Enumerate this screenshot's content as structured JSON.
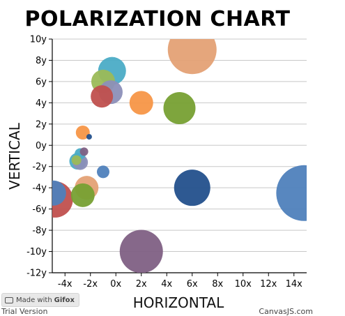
{
  "chart_data": {
    "type": "scatter",
    "variant": "bubble",
    "title": "POLARIZATION CHART",
    "xlabel": "HORIZONTAL",
    "ylabel": "VERTICAL",
    "xlim": [
      -5,
      15
    ],
    "ylim": [
      -12,
      10
    ],
    "x_ticks": [
      -4,
      -2,
      0,
      2,
      4,
      6,
      8,
      10,
      12,
      14
    ],
    "x_tick_labels": [
      "-4x",
      "-2x",
      "0x",
      "2x",
      "4x",
      "6x",
      "8x",
      "10x",
      "12x",
      "14x"
    ],
    "y_ticks": [
      -12,
      -10,
      -8,
      -6,
      -4,
      -2,
      0,
      2,
      4,
      6,
      8,
      10
    ],
    "y_tick_labels": [
      "-12y",
      "-10y",
      "-8y",
      "-6y",
      "-4y",
      "-2y",
      "0y",
      "2y",
      "4y",
      "6y",
      "8y",
      "10y"
    ],
    "grid": true,
    "points": [
      {
        "x": -4.9,
        "y": -4.5,
        "size": 18,
        "color": "#4f81bc"
      },
      {
        "x": -4.8,
        "y": -5.1,
        "size": 26,
        "color": "#c0504e"
      },
      {
        "x": 6.0,
        "y": 9.0,
        "size": 35,
        "color": "#e4a175"
      },
      {
        "x": 14.8,
        "y": -4.5,
        "size": 40,
        "color": "#4f81bc"
      },
      {
        "x": 2.0,
        "y": -10.0,
        "size": 31,
        "color": "#7f6084"
      },
      {
        "x": 6.0,
        "y": -4.0,
        "size": 26,
        "color": "#23508c"
      },
      {
        "x": 5.0,
        "y": 3.5,
        "size": 23,
        "color": "#77a033"
      },
      {
        "x": 2.0,
        "y": 4.0,
        "size": 17,
        "color": "#f79647"
      },
      {
        "x": -1.0,
        "y": 6.0,
        "size": 17,
        "color": "#9bbb58"
      },
      {
        "x": -1.1,
        "y": 4.6,
        "size": 16,
        "color": "#c0504e"
      },
      {
        "x": -0.3,
        "y": 7.0,
        "size": 20,
        "color": "#4bacc6"
      },
      {
        "x": -0.4,
        "y": 5.0,
        "size": 17,
        "color": "#8c8fb8"
      },
      {
        "x": -2.6,
        "y": 1.2,
        "size": 10,
        "color": "#f79647"
      },
      {
        "x": -2.1,
        "y": 0.8,
        "size": 4,
        "color": "#23508c"
      },
      {
        "x": -2.8,
        "y": -0.8,
        "size": 8,
        "color": "#4bacc6"
      },
      {
        "x": -2.5,
        "y": -0.6,
        "size": 6,
        "color": "#7f6084"
      },
      {
        "x": -3.0,
        "y": -1.5,
        "size": 12,
        "color": "#4bacc6"
      },
      {
        "x": -1.0,
        "y": -2.5,
        "size": 9,
        "color": "#4f81bc"
      },
      {
        "x": -2.3,
        "y": -4.0,
        "size": 17,
        "color": "#e4a175"
      },
      {
        "x": -2.6,
        "y": -4.7,
        "size": 17,
        "color": "#77a033"
      },
      {
        "x": -2.8,
        "y": -1.6,
        "size": 11,
        "color": "#8c8fb8"
      },
      {
        "x": -3.1,
        "y": -1.4,
        "size": 7,
        "color": "#9bbb58"
      }
    ]
  },
  "watermark": {
    "badge_prefix": "Made with",
    "badge_brand": "Gifox",
    "trial_text": "Trial Version",
    "credit_text": "CanvasJS.com"
  }
}
